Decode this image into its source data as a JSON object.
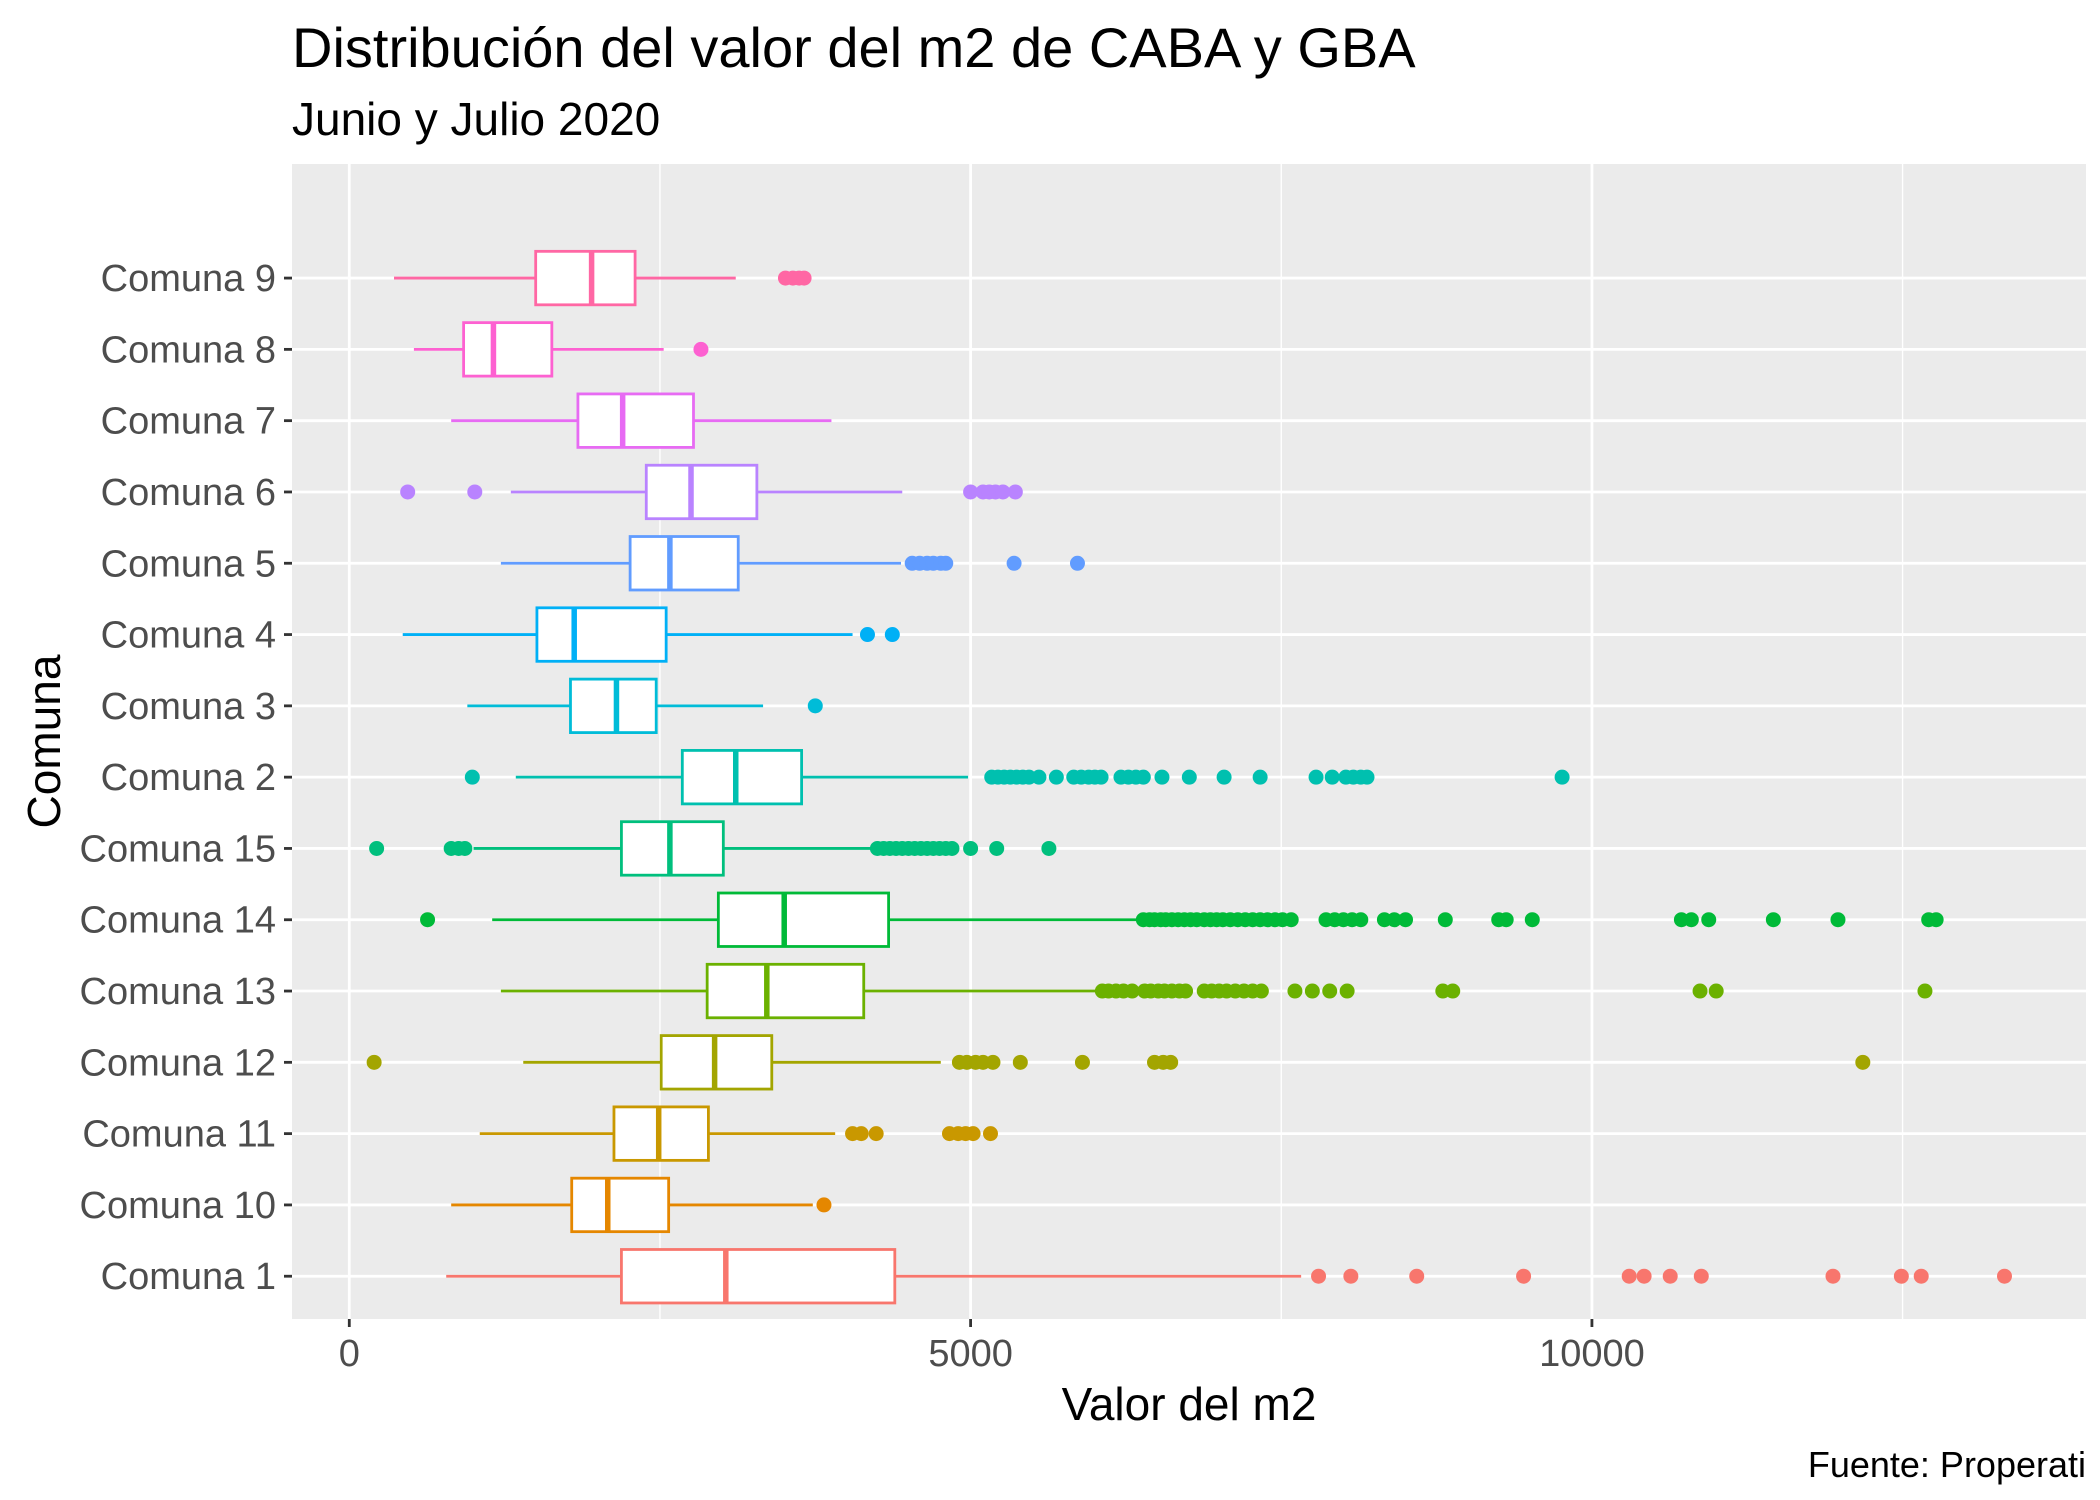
{
  "chart_data": {
    "type": "boxplot",
    "title": "Distribución del valor del m2 de CABA y GBA",
    "subtitle": "Junio y Julio 2020",
    "xlabel": "Valor del m2",
    "ylabel": "Comuna",
    "caption": "Fuente: Properati",
    "xlim": [
      -461,
      13976
    ],
    "x_ticks": [
      0,
      5000,
      10000
    ],
    "x_tick_labels": [
      "0",
      "5000",
      "10000"
    ],
    "x_minor_ticks": [
      2500,
      7500,
      12500
    ],
    "grid": true,
    "legend": false,
    "background": "#EBEBEB",
    "boxes": [
      {
        "label": "Comuna 1",
        "color": "#F8766D",
        "whisker_low": 780,
        "q1": 2190,
        "median": 3030,
        "q3": 4390,
        "whisker_high": 7660,
        "outliers": [
          7800,
          8060,
          8590,
          9450,
          10300,
          10420,
          10630,
          10880,
          11940,
          12490,
          12650,
          13320
        ]
      },
      {
        "label": "Comuna 10",
        "color": "#E58700",
        "whisker_low": 820,
        "q1": 1790,
        "median": 2080,
        "q3": 2570,
        "whisker_high": 3730,
        "outliers": [
          3820
        ]
      },
      {
        "label": "Comuna 11",
        "color": "#C99800",
        "whisker_low": 1050,
        "q1": 2130,
        "median": 2490,
        "q3": 2890,
        "whisker_high": 3910,
        "outliers": [
          4050,
          4120,
          4240,
          4830,
          4900,
          4960,
          5020,
          5160
        ]
      },
      {
        "label": "Comuna 12",
        "color": "#A3A500",
        "whisker_low": 1400,
        "q1": 2510,
        "median": 2940,
        "q3": 3400,
        "whisker_high": 4760,
        "outliers": [
          200,
          4910,
          4970,
          5040,
          5100,
          5180,
          5400,
          5900,
          6480,
          6550,
          6610,
          12180
        ]
      },
      {
        "label": "Comuna 13",
        "color": "#6BB100",
        "whisker_low": 1220,
        "q1": 2880,
        "median": 3360,
        "q3": 4140,
        "whisker_high": 6050,
        "outliers": [
          6060,
          6110,
          6170,
          6230,
          6300,
          6400,
          6450,
          6510,
          6560,
          6620,
          6680,
          6730,
          6880,
          6940,
          7000,
          7060,
          7130,
          7200,
          7270,
          7340,
          7610,
          7750,
          7890,
          8030,
          8800,
          8880,
          10870,
          11000,
          12680
        ]
      },
      {
        "label": "Comuna 14",
        "color": "#00BA38",
        "whisker_low": 1150,
        "q1": 2970,
        "median": 3500,
        "q3": 4340,
        "whisker_high": 6380,
        "outliers": [
          630,
          6390,
          6440,
          6480,
          6530,
          6570,
          6620,
          6670,
          6720,
          6770,
          6820,
          6880,
          6930,
          6980,
          7030,
          7090,
          7150,
          7210,
          7270,
          7330,
          7390,
          7450,
          7510,
          7580,
          7860,
          7930,
          8000,
          8070,
          8140,
          8330,
          8410,
          8500,
          8820,
          9250,
          9310,
          9520,
          10720,
          10800,
          10940,
          11460,
          11980,
          12710,
          12770
        ]
      },
      {
        "label": "Comuna 15",
        "color": "#00BF7D",
        "whisker_low": 1000,
        "q1": 2190,
        "median": 2580,
        "q3": 3010,
        "whisker_high": 4240,
        "outliers": [
          220,
          820,
          880,
          930,
          4250,
          4300,
          4350,
          4400,
          4450,
          4500,
          4550,
          4600,
          4650,
          4700,
          4750,
          4800,
          4850,
          5000,
          5210,
          5630
        ]
      },
      {
        "label": "Comuna 2",
        "color": "#00C0AF",
        "whisker_low": 1340,
        "q1": 2680,
        "median": 3110,
        "q3": 3640,
        "whisker_high": 4980,
        "outliers": [
          990,
          5170,
          5220,
          5270,
          5320,
          5370,
          5420,
          5470,
          5550,
          5690,
          5830,
          5890,
          5950,
          6000,
          6050,
          6210,
          6270,
          6330,
          6390,
          6540,
          6760,
          7040,
          7330,
          7780,
          7910,
          8020,
          8080,
          8140,
          8190,
          9760
        ]
      },
      {
        "label": "Comuna 3",
        "color": "#00BCD8",
        "whisker_low": 950,
        "q1": 1780,
        "median": 2150,
        "q3": 2470,
        "whisker_high": 3330,
        "outliers": [
          3750
        ]
      },
      {
        "label": "Comuna 4",
        "color": "#00B0F6",
        "whisker_low": 430,
        "q1": 1510,
        "median": 1810,
        "q3": 2550,
        "whisker_high": 4050,
        "outliers": [
          4170,
          4370
        ]
      },
      {
        "label": "Comuna 5",
        "color": "#619CFF",
        "whisker_low": 1220,
        "q1": 2260,
        "median": 2580,
        "q3": 3130,
        "whisker_high": 4440,
        "outliers": [
          4530,
          4590,
          4650,
          4700,
          4760,
          4800,
          5350,
          5860
        ]
      },
      {
        "label": "Comuna 6",
        "color": "#B983FF",
        "whisker_low": 1300,
        "q1": 2390,
        "median": 2750,
        "q3": 3280,
        "whisker_high": 4450,
        "outliers": [
          470,
          1010,
          5000,
          5100,
          5150,
          5200,
          5260,
          5360
        ]
      },
      {
        "label": "Comuna 7",
        "color": "#E76BF3",
        "whisker_low": 820,
        "q1": 1840,
        "median": 2200,
        "q3": 2770,
        "whisker_high": 3880,
        "outliers": []
      },
      {
        "label": "Comuna 8",
        "color": "#FD61D1",
        "whisker_low": 520,
        "q1": 920,
        "median": 1160,
        "q3": 1630,
        "whisker_high": 2530,
        "outliers": [
          2830
        ]
      },
      {
        "label": "Comuna 9",
        "color": "#FF67A4",
        "whisker_low": 360,
        "q1": 1500,
        "median": 1950,
        "q3": 2300,
        "whisker_high": 3110,
        "outliers": [
          3510,
          3570,
          3620,
          3660
        ]
      }
    ]
  }
}
